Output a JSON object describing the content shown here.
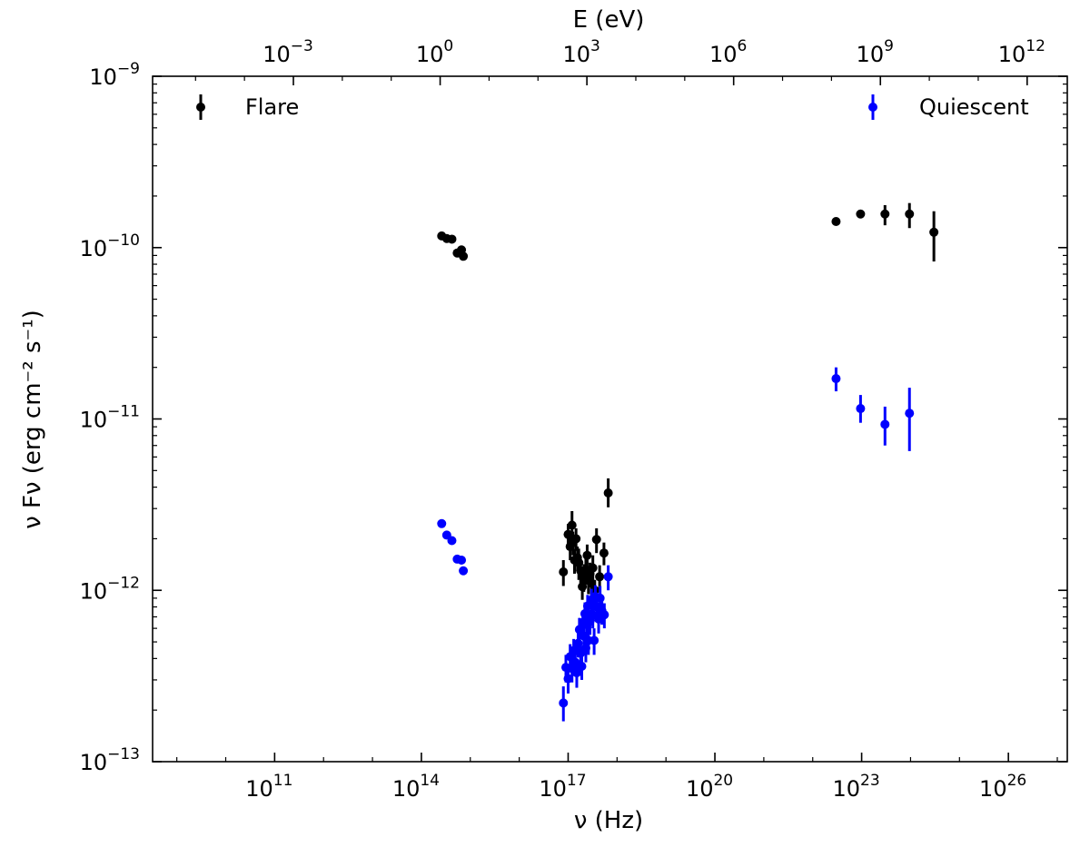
{
  "chart_data": {
    "type": "scatter",
    "title": "",
    "xlabel": "ν (Hz)",
    "ylabel": "ν Fν (erg cm⁻² s⁻¹)",
    "top_xlabel": "E (eV)",
    "x_scale": "log",
    "y_scale": "log",
    "xlim": [
      320000000.0,
      1.6e+27
    ],
    "ylim": [
      1e-13,
      1e-09
    ],
    "x_ticks": [
      {
        "exp": "11",
        "label": "10^11"
      },
      {
        "exp": "14",
        "label": "10^14"
      },
      {
        "exp": "17",
        "label": "10^17"
      },
      {
        "exp": "20",
        "label": "10^20"
      },
      {
        "exp": "23",
        "label": "10^23"
      },
      {
        "exp": "26",
        "label": "10^26"
      }
    ],
    "top_ticks": [
      {
        "exp": "−3",
        "label": "10^−3"
      },
      {
        "exp": "0",
        "label": "10^0"
      },
      {
        "exp": "3",
        "label": "10^3"
      },
      {
        "exp": "6",
        "label": "10^6"
      },
      {
        "exp": "9",
        "label": "10^9"
      },
      {
        "exp": "12",
        "label": "10^12"
      }
    ],
    "y_ticks": [
      {
        "exp": "−9",
        "label": "10^−9"
      },
      {
        "exp": "−10",
        "label": "10^−10"
      },
      {
        "exp": "−11",
        "label": "10^−11"
      },
      {
        "exp": "−12",
        "label": "10^−12"
      },
      {
        "exp": "−13",
        "label": "10^−13"
      }
    ],
    "grid": false,
    "legend": [
      "top-left",
      "top-right"
    ],
    "series": [
      {
        "name": "Flare",
        "color": "#000000",
        "points": [
          {
            "x": 260000000000000.0,
            "y": 1.17e-10
          },
          {
            "x": 330000000000000.0,
            "y": 1.13e-10
          },
          {
            "x": 420000000000000.0,
            "y": 1.12e-10
          },
          {
            "x": 540000000000000.0,
            "y": 9.3e-11
          },
          {
            "x": 660000000000000.0,
            "y": 9.7e-11
          },
          {
            "x": 720000000000000.0,
            "y": 8.9e-11
          },
          {
            "x": 3e+22,
            "y": 1.42e-10
          },
          {
            "x": 9.5e+22,
            "y": 1.57e-10
          },
          {
            "x": 3e+23,
            "y": 1.57e-10,
            "err": [
              1.35e-10,
              1.77e-10
            ]
          },
          {
            "x": 9.5e+23,
            "y": 1.57e-10,
            "err": [
              1.3e-10,
              1.82e-10
            ]
          },
          {
            "x": 3e+24,
            "y": 1.23e-10,
            "err": [
              8.3e-11,
              1.63e-10
            ]
          },
          {
            "x": 8e+16,
            "y": 1.28e-12,
            "err": [
              1.06e-12,
              1.5e-12
            ]
          },
          {
            "x": 1e+17,
            "y": 2.12e-12,
            "err": [
              1.8e-12,
              2.44e-12
            ]
          },
          {
            "x": 1.1e+17,
            "y": 1.8e-12,
            "err": [
              1.5e-12,
              2.1e-12
            ]
          },
          {
            "x": 1.2e+17,
            "y": 2.4e-12,
            "err": [
              2e-12,
              2.9e-12
            ]
          },
          {
            "x": 1.25e+17,
            "y": 1.9e-12,
            "err": [
              1.6e-12,
              2.2e-12
            ]
          },
          {
            "x": 1.35e+17,
            "y": 1.5e-12,
            "err": [
              1.25e-12,
              1.75e-12
            ]
          },
          {
            "x": 1.45e+17,
            "y": 2e-12,
            "err": [
              1.7e-12,
              2.3e-12
            ]
          },
          {
            "x": 1.55e+17,
            "y": 1.55e-12,
            "err": [
              1.3e-12,
              1.8e-12
            ]
          },
          {
            "x": 1.65e+17,
            "y": 1.45e-12,
            "err": [
              1.15e-12,
              1.75e-12
            ]
          },
          {
            "x": 1.8e+17,
            "y": 1.3e-12,
            "err": [
              1.1e-12,
              1.5e-12
            ]
          },
          {
            "x": 1.95e+17,
            "y": 1.05e-12,
            "err": [
              8.8e-13,
              1.22e-12
            ]
          },
          {
            "x": 2.1e+17,
            "y": 1.2e-12,
            "err": [
              9.8e-13,
              1.42e-12
            ]
          },
          {
            "x": 2.3e+17,
            "y": 1.32e-12,
            "err": [
              1.08e-12,
              1.56e-12
            ]
          },
          {
            "x": 2.45e+17,
            "y": 1.6e-12,
            "err": [
              1.35e-12,
              1.85e-12
            ]
          },
          {
            "x": 2.6e+17,
            "y": 1.15e-12,
            "err": [
              9.5e-13,
              1.35e-12
            ]
          },
          {
            "x": 2.8e+17,
            "y": 1.25e-12,
            "err": [
              1.05e-12,
              1.45e-12
            ]
          },
          {
            "x": 3e+17,
            "y": 1.1e-12,
            "err": [
              9e-13,
              1.3e-12
            ]
          },
          {
            "x": 3.2e+17,
            "y": 1.35e-12,
            "err": [
              1.1e-12,
              1.6e-12
            ]
          },
          {
            "x": 3.5e+17,
            "y": 1e-12,
            "err": [
              8.5e-13,
              1.15e-12
            ]
          },
          {
            "x": 3.8e+17,
            "y": 1.98e-12,
            "err": [
              1.65e-12,
              2.3e-12
            ]
          },
          {
            "x": 4.4e+17,
            "y": 1.2e-12,
            "err": [
              1e-12,
              1.4e-12
            ]
          },
          {
            "x": 5.4e+17,
            "y": 1.65e-12,
            "err": [
              1.4e-12,
              1.9e-12
            ]
          },
          {
            "x": 6.6e+17,
            "y": 3.7e-12,
            "err": [
              3.05e-12,
              4.5e-12
            ]
          }
        ]
      },
      {
        "name": "Quiescent",
        "color": "#0000ff",
        "points": [
          {
            "x": 260000000000000.0,
            "y": 2.45e-12
          },
          {
            "x": 330000000000000.0,
            "y": 2.1e-12
          },
          {
            "x": 420000000000000.0,
            "y": 1.95e-12
          },
          {
            "x": 540000000000000.0,
            "y": 1.52e-12
          },
          {
            "x": 660000000000000.0,
            "y": 1.5e-12
          },
          {
            "x": 720000000000000.0,
            "y": 1.3e-12
          },
          {
            "x": 3e+22,
            "y": 1.72e-11,
            "err": [
              1.45e-11,
              2e-11
            ]
          },
          {
            "x": 9.5e+22,
            "y": 1.15e-11,
            "err": [
              9.5e-12,
              1.38e-11
            ]
          },
          {
            "x": 3e+23,
            "y": 9.3e-12,
            "err": [
              7e-12,
              1.18e-11
            ]
          },
          {
            "x": 9.5e+23,
            "y": 1.08e-11,
            "err": [
              6.5e-12,
              1.52e-11
            ]
          },
          {
            "x": 8e+16,
            "y": 2.2e-13,
            "err": [
              1.72e-13,
              2.75e-13
            ]
          },
          {
            "x": 9e+16,
            "y": 3.55e-13,
            "err": [
              2.9e-13,
              4.2e-13
            ]
          },
          {
            "x": 1e+17,
            "y": 3.05e-13,
            "err": [
              2.5e-13,
              3.6e-13
            ]
          },
          {
            "x": 1.1e+17,
            "y": 4.1e-13,
            "err": [
              3.35e-13,
              4.85e-13
            ]
          },
          {
            "x": 1.2e+17,
            "y": 3.5e-13,
            "err": [
              2.9e-13,
              4.1e-13
            ]
          },
          {
            "x": 1.3e+17,
            "y": 4.45e-13,
            "err": [
              3.7e-13,
              5.2e-13
            ]
          },
          {
            "x": 1.4e+17,
            "y": 3.8e-13,
            "err": [
              3.15e-13,
              4.45e-13
            ]
          },
          {
            "x": 1.5e+17,
            "y": 3.3e-13,
            "err": [
              2.7e-13,
              3.9e-13
            ]
          },
          {
            "x": 1.6e+17,
            "y": 4.9e-13,
            "err": [
              4.05e-13,
              5.75e-13
            ]
          },
          {
            "x": 1.7e+17,
            "y": 5.9e-13,
            "err": [
              4.9e-13,
              6.9e-13
            ]
          },
          {
            "x": 1.8e+17,
            "y": 4.3e-13,
            "err": [
              3.55e-13,
              5.05e-13
            ]
          },
          {
            "x": 1.9e+17,
            "y": 3.6e-13,
            "err": [
              3e-13,
              4.2e-13
            ]
          },
          {
            "x": 2e+17,
            "y": 6.5e-13,
            "err": [
              5.45e-13,
              7.55e-13
            ]
          },
          {
            "x": 2.1e+17,
            "y": 5.4e-13,
            "err": [
              4.5e-13,
              6.3e-13
            ]
          },
          {
            "x": 2.2e+17,
            "y": 7.3e-13,
            "err": [
              6.1e-13,
              8.5e-13
            ]
          },
          {
            "x": 2.3e+17,
            "y": 4.6e-13,
            "err": [
              3.8e-13,
              5.4e-13
            ]
          },
          {
            "x": 2.4e+17,
            "y": 6.3e-13,
            "err": [
              5.2e-13,
              7.4e-13
            ]
          },
          {
            "x": 2.5e+17,
            "y": 8.1e-13,
            "err": [
              6.8e-13,
              9.4e-13
            ]
          },
          {
            "x": 2.6e+17,
            "y": 5.1e-13,
            "err": [
              4.2e-13,
              6e-13
            ]
          },
          {
            "x": 2.8e+17,
            "y": 6.6e-13,
            "err": [
              5.5e-13,
              7.7e-13
            ]
          },
          {
            "x": 3e+17,
            "y": 8.8e-13,
            "err": [
              7.4e-13,
              1.02e-12
            ]
          },
          {
            "x": 3.2e+17,
            "y": 7.2e-13,
            "err": [
              6e-13,
              8.4e-13
            ]
          },
          {
            "x": 3.4e+17,
            "y": 5.1e-13,
            "err": [
              4.2e-13,
              6e-13
            ]
          },
          {
            "x": 3.6e+17,
            "y": 9.2e-13,
            "err": [
              7.7e-13,
              1.07e-12
            ]
          },
          {
            "x": 3.9e+17,
            "y": 8e-13,
            "err": [
              6.6e-13,
              9.4e-13
            ]
          },
          {
            "x": 4.2e+17,
            "y": 6.8e-13,
            "err": [
              5.6e-13,
              8e-13
            ]
          },
          {
            "x": 4.5e+17,
            "y": 9e-13,
            "err": [
              7.4e-13,
              1.06e-12
            ]
          },
          {
            "x": 4.9e+17,
            "y": 7.6e-13,
            "err": [
              6.3e-13,
              8.9e-13
            ]
          },
          {
            "x": 5.5e+17,
            "y": 7.2e-13,
            "err": [
              6e-13,
              8.4e-13
            ]
          },
          {
            "x": 6.6e+17,
            "y": 1.2e-12,
            "err": [
              1e-12,
              1.4e-12
            ]
          }
        ]
      }
    ]
  }
}
